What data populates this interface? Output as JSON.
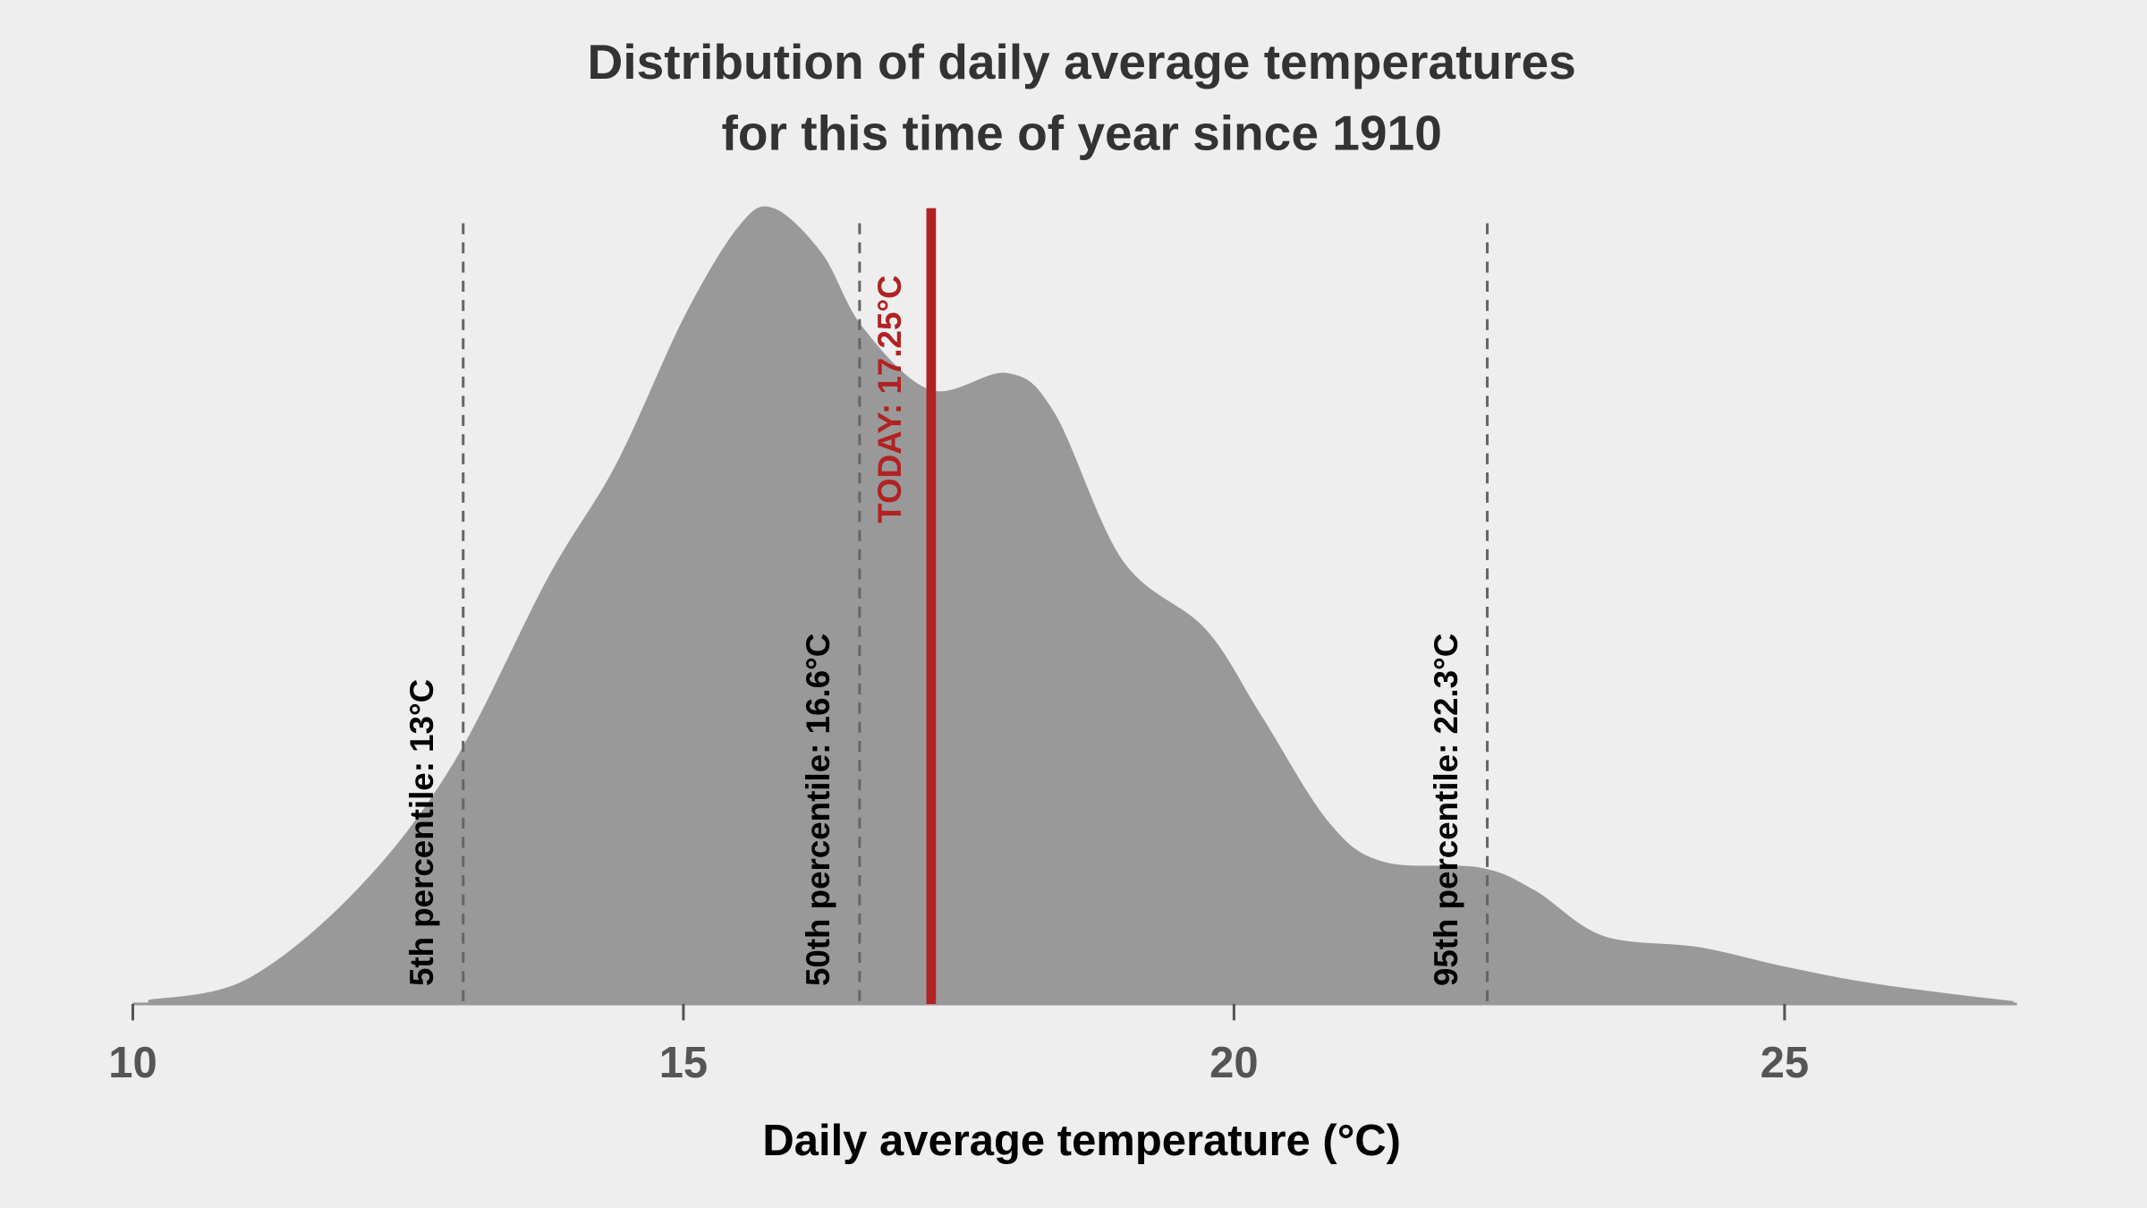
{
  "chart_data": {
    "type": "area",
    "title": [
      "Distribution of daily average temperatures",
      "for this time of year since 1910"
    ],
    "x_label": "Daily average temperature (°C)",
    "x": [
      10.14,
      11.03,
      12.03,
      12.9,
      13.77,
      14.39,
      15.01,
      15.51,
      15.82,
      16.26,
      16.63,
      17.25,
      17.94,
      18.37,
      18.99,
      19.74,
      20.24,
      20.86,
      21.36,
      22.23,
      22.73,
      23.35,
      24.22,
      24.97,
      25.71,
      26.46,
      27.08
    ],
    "values": [
      0.0007,
      0.0043,
      0.02,
      0.042,
      0.075,
      0.095,
      0.121,
      0.137,
      0.14,
      0.132,
      0.119,
      0.108,
      0.111,
      0.104,
      0.078,
      0.066,
      0.051,
      0.032,
      0.025,
      0.024,
      0.02,
      0.012,
      0.01,
      0.0067,
      0.0039,
      0.0019,
      0.0005
    ],
    "color": "#999999",
    "xlim": [
      10,
      27.11
    ],
    "xticks": [
      10,
      15,
      20,
      25
    ],
    "ylim": [
      0,
      0.14
    ],
    "markers": [
      {
        "value": 13,
        "label": "5th percentile:  13°C",
        "color": "#666666",
        "style": "dashed"
      },
      {
        "value": 16.6,
        "label": "50th percentile:  16.6°C",
        "color": "#666666",
        "style": "dashed"
      },
      {
        "value": 22.3,
        "label": "95th percentile:  22.3°C",
        "color": "#666666",
        "style": "dashed"
      },
      {
        "value": 17.25,
        "label": "TODAY:  17.25°C",
        "color": "#b22222",
        "style": "solid"
      }
    ]
  }
}
